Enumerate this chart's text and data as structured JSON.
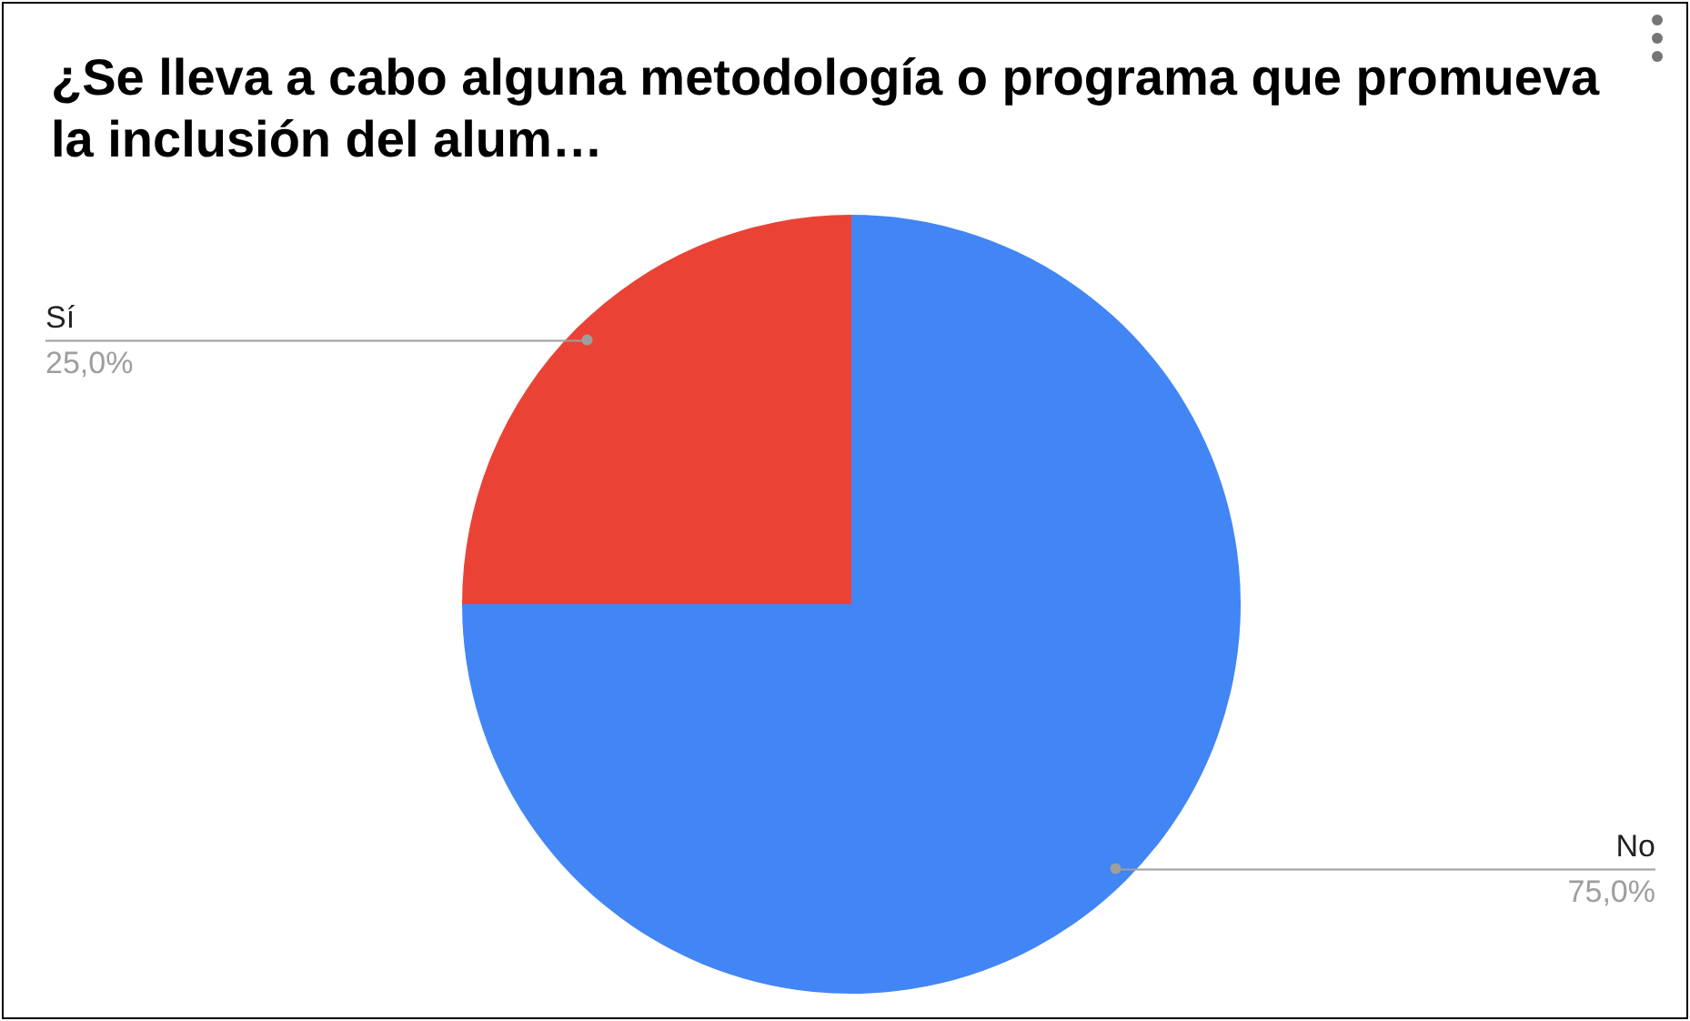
{
  "chart_data": {
    "type": "pie",
    "title": "¿Se lleva a cabo alguna metodología o programa que promueva la inclusión del alum…",
    "categories": [
      "No",
      "Sí"
    ],
    "values": [
      75,
      25
    ],
    "colors": [
      "#4285f4",
      "#ea4335"
    ],
    "value_labels": [
      "75,0%",
      "25,0%"
    ],
    "legend": false
  }
}
